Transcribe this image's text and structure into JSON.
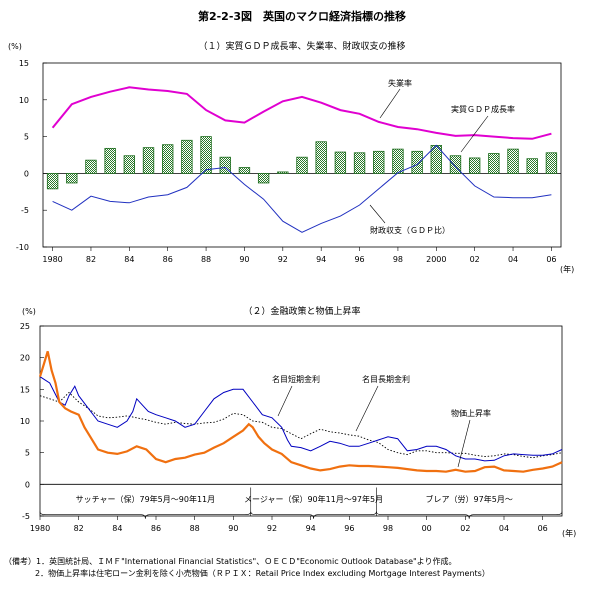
{
  "figure_title": "第2-2-3図　英国のマクロ経済指標の推移",
  "notes": {
    "heading": "（備考）",
    "line1": "1．英国統計局、ＩＭＦ\"International Financial Statistics\"、ＯＥＣＤ\"Economic Outlook Database\"より作成。",
    "line2": "2．物価上昇率は住宅ローン金利を除く小売物価（ＲＰＩＸ：Retail Price Index excluding Mortgage Interest Payments）"
  },
  "colors": {
    "unemployment": "#e000d0",
    "growth_fill": "#bfe0bf",
    "growth_edge": "#1a6a1a",
    "fiscal": "#2030c0",
    "short_rate": "#0000c0",
    "long_rate": "#000000",
    "inflation": "#f07010"
  },
  "chart_data": [
    {
      "type": "bar+line",
      "title": "（１）実質ＧＤＰ成長率、失業率、財政収支の推移",
      "ylabel": "(%)",
      "xlabel_unit": "(年)",
      "ylim": [
        -10,
        15
      ],
      "yticks": [
        -10,
        -5,
        0,
        5,
        10,
        15
      ],
      "xlim": [
        1980,
        2006
      ],
      "xtick_labels": [
        {
          "x": 1980,
          "label": "1980"
        },
        {
          "x": 1982,
          "label": "82"
        },
        {
          "x": 1984,
          "label": "84"
        },
        {
          "x": 1986,
          "label": "86"
        },
        {
          "x": 1988,
          "label": "88"
        },
        {
          "x": 1990,
          "label": "90"
        },
        {
          "x": 1992,
          "label": "92"
        },
        {
          "x": 1994,
          "label": "94"
        },
        {
          "x": 1996,
          "label": "96"
        },
        {
          "x": 1998,
          "label": "98"
        },
        {
          "x": 2000,
          "label": "2000"
        },
        {
          "x": 2002,
          "label": "02"
        },
        {
          "x": 2004,
          "label": "04"
        },
        {
          "x": 2006,
          "label": "06"
        }
      ],
      "years": [
        1980,
        1981,
        1982,
        1983,
        1984,
        1985,
        1986,
        1987,
        1988,
        1989,
        1990,
        1991,
        1992,
        1993,
        1994,
        1995,
        1996,
        1997,
        1998,
        1999,
        2000,
        2001,
        2002,
        2003,
        2004,
        2005,
        2006
      ],
      "series": [
        {
          "name": "実質ＧＤＰ成長率",
          "type": "bar",
          "values": [
            -2.1,
            -1.3,
            1.8,
            3.4,
            2.4,
            3.5,
            3.9,
            4.5,
            5.0,
            2.2,
            0.8,
            -1.3,
            0.2,
            2.2,
            4.3,
            2.9,
            2.8,
            3.0,
            3.3,
            3.0,
            3.8,
            2.4,
            2.1,
            2.7,
            3.3,
            2.0,
            2.8
          ]
        },
        {
          "name": "失業率",
          "type": "line",
          "values": [
            6.2,
            9.4,
            10.4,
            11.1,
            11.7,
            11.4,
            11.2,
            10.8,
            8.6,
            7.2,
            6.9,
            8.4,
            9.8,
            10.4,
            9.6,
            8.6,
            8.1,
            7.0,
            6.3,
            6.0,
            5.5,
            5.1,
            5.2,
            5.0,
            4.8,
            4.7,
            5.4
          ]
        },
        {
          "name": "財政収支（ＧＤＰ比）",
          "type": "line",
          "values": [
            -3.8,
            -5.0,
            -3.1,
            -3.8,
            -4.0,
            -3.2,
            -2.9,
            -1.9,
            0.5,
            0.8,
            -1.5,
            -3.5,
            -6.5,
            -8.0,
            -6.8,
            -5.8,
            -4.3,
            -2.1,
            0.1,
            1.2,
            3.8,
            0.9,
            -1.7,
            -3.2,
            -3.3,
            -3.3,
            -2.9
          ]
        }
      ],
      "annotations": [
        {
          "text": "失業率",
          "series": "失業率"
        },
        {
          "text": "実質ＧＤＰ成長率",
          "series": "実質ＧＤＰ成長率"
        },
        {
          "text": "財政収支（ＧＤＰ比）",
          "series": "財政収支（ＧＤＰ比）"
        }
      ]
    },
    {
      "type": "line",
      "title": "（２）金融政策と物価上昇率",
      "ylabel": "(%)",
      "xlabel_unit": "(年)",
      "ylim": [
        -5,
        25
      ],
      "yticks": [
        -5,
        0,
        5,
        10,
        15,
        20,
        25
      ],
      "xlim": [
        1980,
        2007
      ],
      "xtick_labels": [
        {
          "x": 1980,
          "label": "1980"
        },
        {
          "x": 1982,
          "label": "82"
        },
        {
          "x": 1984,
          "label": "84"
        },
        {
          "x": 1986,
          "label": "86"
        },
        {
          "x": 1988,
          "label": "88"
        },
        {
          "x": 1990,
          "label": "90"
        },
        {
          "x": 1992,
          "label": "92"
        },
        {
          "x": 1994,
          "label": "94"
        },
        {
          "x": 1996,
          "label": "96"
        },
        {
          "x": 1998,
          "label": "98"
        },
        {
          "x": 2000,
          "label": "00"
        },
        {
          "x": 2002,
          "label": "02"
        },
        {
          "x": 2004,
          "label": "04"
        },
        {
          "x": 2006,
          "label": "06"
        }
      ],
      "series": [
        {
          "name": "名目短期金利",
          "x": [
            1980.0,
            1980.5,
            1981.0,
            1981.3,
            1981.5,
            1981.8,
            1982.0,
            1982.5,
            1983.0,
            1983.5,
            1984.0,
            1984.5,
            1984.8,
            1985.0,
            1985.3,
            1985.6,
            1986.0,
            1986.5,
            1987.0,
            1987.5,
            1988.0,
            1988.5,
            1989.0,
            1989.5,
            1990.0,
            1990.5,
            1991.0,
            1991.5,
            1992.0,
            1992.5,
            1992.8,
            1993.0,
            1993.5,
            1994.0,
            1994.5,
            1995.0,
            1995.5,
            1996.0,
            1996.5,
            1997.0,
            1997.5,
            1998.0,
            1998.5,
            1999.0,
            1999.5,
            2000.0,
            2000.5,
            2001.0,
            2001.5,
            2002.0,
            2002.5,
            2003.0,
            2003.5,
            2004.0,
            2004.5,
            2005.0,
            2005.5,
            2006.0,
            2006.5,
            2007.0
          ],
          "values": [
            17.0,
            16.0,
            13.0,
            12.5,
            14.0,
            15.5,
            14.0,
            12.0,
            10.0,
            9.5,
            9.0,
            10.0,
            11.5,
            13.5,
            12.5,
            11.5,
            11.0,
            10.5,
            10.0,
            9.0,
            9.5,
            11.5,
            13.5,
            14.5,
            15.0,
            15.0,
            13.0,
            11.0,
            10.5,
            9.0,
            7.0,
            6.0,
            5.8,
            5.3,
            6.0,
            6.8,
            6.5,
            6.0,
            6.0,
            6.5,
            7.0,
            7.5,
            7.2,
            5.3,
            5.5,
            6.0,
            6.0,
            5.5,
            4.5,
            4.0,
            4.0,
            3.7,
            3.8,
            4.5,
            4.8,
            4.7,
            4.6,
            4.6,
            4.8,
            5.5
          ]
        },
        {
          "name": "名目長期金利",
          "x": [
            1980.0,
            1980.5,
            1981.0,
            1981.5,
            1982.0,
            1982.5,
            1983.0,
            1983.5,
            1984.0,
            1984.5,
            1985.0,
            1985.5,
            1986.0,
            1986.5,
            1987.0,
            1987.5,
            1988.0,
            1988.5,
            1989.0,
            1989.5,
            1990.0,
            1990.5,
            1991.0,
            1991.5,
            1992.0,
            1992.5,
            1993.0,
            1993.5,
            1994.0,
            1994.5,
            1995.0,
            1995.5,
            1996.0,
            1996.5,
            1997.0,
            1997.5,
            1998.0,
            1998.5,
            1999.0,
            1999.5,
            2000.0,
            2000.5,
            2001.0,
            2001.5,
            2002.0,
            2002.5,
            2003.0,
            2003.5,
            2004.0,
            2004.5,
            2005.0,
            2005.5,
            2006.0,
            2006.5,
            2007.0
          ],
          "values": [
            14.0,
            13.5,
            13.0,
            14.5,
            13.0,
            12.0,
            10.8,
            10.5,
            10.6,
            10.8,
            10.5,
            10.2,
            9.8,
            9.5,
            9.8,
            9.6,
            9.5,
            9.7,
            9.8,
            10.3,
            11.2,
            11.0,
            10.0,
            9.8,
            9.0,
            8.8,
            8.0,
            7.2,
            8.0,
            8.7,
            8.3,
            8.1,
            7.8,
            7.6,
            7.0,
            6.6,
            5.5,
            5.0,
            4.7,
            5.3,
            5.3,
            5.0,
            5.0,
            4.9,
            4.9,
            4.6,
            4.4,
            4.5,
            4.8,
            4.7,
            4.4,
            4.2,
            4.5,
            4.7,
            5.0
          ]
        },
        {
          "name": "物価上昇率",
          "x": [
            1980.0,
            1980.2,
            1980.4,
            1980.6,
            1980.8,
            1981.0,
            1981.3,
            1981.6,
            1982.0,
            1982.3,
            1982.6,
            1983.0,
            1983.5,
            1984.0,
            1984.5,
            1985.0,
            1985.5,
            1986.0,
            1986.5,
            1987.0,
            1987.5,
            1988.0,
            1988.5,
            1989.0,
            1989.5,
            1990.0,
            1990.5,
            1990.8,
            1991.0,
            1991.3,
            1991.6,
            1992.0,
            1992.5,
            1993.0,
            1993.5,
            1994.0,
            1994.5,
            1995.0,
            1995.5,
            1996.0,
            1996.5,
            1997.0,
            1997.5,
            1998.0,
            1998.5,
            1999.0,
            1999.5,
            2000.0,
            2000.5,
            2001.0,
            2001.5,
            2002.0,
            2002.5,
            2003.0,
            2003.5,
            2004.0,
            2004.5,
            2005.0,
            2005.5,
            2006.0,
            2006.5,
            2007.0
          ],
          "values": [
            17.0,
            19.0,
            21.0,
            18.0,
            16.0,
            13.0,
            12.0,
            11.5,
            11.0,
            9.0,
            7.5,
            5.5,
            5.0,
            4.8,
            5.2,
            6.0,
            5.5,
            4.0,
            3.5,
            4.0,
            4.2,
            4.7,
            5.0,
            5.8,
            6.5,
            7.5,
            8.5,
            9.5,
            9.0,
            7.5,
            6.5,
            5.5,
            4.8,
            3.5,
            3.0,
            2.5,
            2.2,
            2.4,
            2.8,
            3.0,
            2.9,
            2.9,
            2.8,
            2.7,
            2.6,
            2.4,
            2.2,
            2.1,
            2.1,
            2.0,
            2.3,
            2.0,
            2.1,
            2.7,
            2.8,
            2.2,
            2.1,
            2.0,
            2.3,
            2.5,
            2.8,
            3.5
          ]
        }
      ],
      "annotations": [
        {
          "text": "名目短期金利",
          "series": "名目短期金利"
        },
        {
          "text": "名目長期金利",
          "series": "名目長期金利"
        },
        {
          "text": "物価上昇率",
          "series": "物価上昇率"
        }
      ],
      "periods": [
        {
          "label": "サッチャー（保）79年5月～90年11月",
          "start": 1979.4,
          "end": 1990.9
        },
        {
          "label": "メージャー（保）90年11月～97年5月",
          "start": 1990.9,
          "end": 1997.4
        },
        {
          "label": "ブレア（労）97年5月～",
          "start": 1997.4,
          "end": 2007.0
        }
      ]
    }
  ]
}
